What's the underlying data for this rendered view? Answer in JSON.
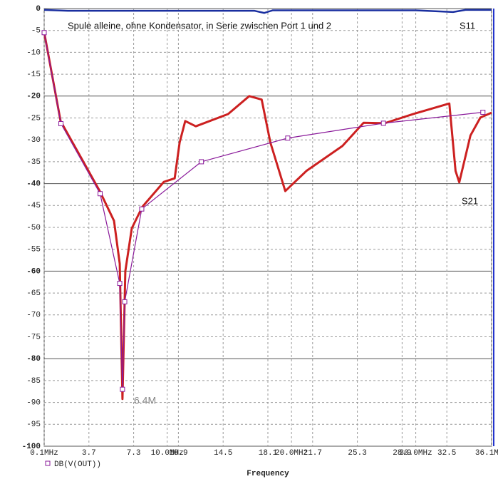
{
  "chart_data": {
    "type": "line",
    "title": "Spule alleine, ohne Kondensator, in Serie zwischen Port 1 und 2",
    "x_label": "Frequency",
    "annotations": [
      "S11",
      "S21",
      "6.4M"
    ],
    "xlim": [
      0.1,
      36.1
    ],
    "ylim": [
      -100,
      0
    ],
    "grid": true,
    "xticks": [
      {
        "value": 0.1,
        "label": "0.1MHz"
      },
      3.7,
      7.3,
      {
        "value": 10,
        "label": "10.0MHz"
      },
      10.9,
      14.5,
      18.1,
      {
        "value": 20,
        "label": "20.0MHz"
      },
      21.7,
      25.3,
      28.9,
      {
        "value": 30,
        "label": "30.0MHz"
      },
      32.5,
      {
        "value": 36.1,
        "label": "36.1MHz"
      }
    ],
    "yticks": [
      0,
      -5,
      -10,
      -15,
      -20,
      -25,
      -30,
      -35,
      -40,
      -45,
      -50,
      -55,
      -60,
      -65,
      -70,
      -75,
      -80,
      -85,
      -90,
      -95,
      -100
    ],
    "series": [
      {
        "name": "S11",
        "color": "#1a2fa0",
        "width": 2.5,
        "markers": false,
        "x": [
          0.1,
          2,
          10,
          17,
          17.8,
          18.5,
          30,
          33,
          34,
          36.1
        ],
        "values": [
          -0.3,
          -0.5,
          -0.5,
          -0.5,
          -1,
          -0.4,
          -0.4,
          -0.8,
          -0.3,
          -0.3
        ]
      },
      {
        "name": "S21",
        "color": "#cc2020",
        "width": 3,
        "markers": false,
        "x": [
          0.1,
          1.42,
          4.57,
          5.72,
          6.18,
          6.4,
          6.63,
          7.15,
          8.0,
          9.73,
          10.6,
          11.0,
          11.45,
          12.3,
          14.9,
          16.6,
          17.6,
          18.3,
          19.5,
          21.2,
          24.1,
          25.8,
          27.5,
          29.8,
          32.7,
          33.2,
          33.5,
          34.4,
          35.2,
          36.1
        ],
        "values": [
          -5.4,
          -25.7,
          -41.7,
          -48.5,
          -58.3,
          -89.2,
          -60,
          -50.2,
          -45.3,
          -39.6,
          -38.8,
          -30.6,
          -25.7,
          -26.9,
          -24.1,
          -20,
          -20.8,
          -30.6,
          -41.7,
          -37.1,
          -31.4,
          -26.1,
          -26.2,
          -24.1,
          -21.7,
          -37.1,
          -39.7,
          -29,
          -24.9,
          -23.8
        ]
      },
      {
        "name": "DB(V(OUT))",
        "color": "#8a1a9a",
        "width": 1.2,
        "markers": true,
        "x": [
          0.1,
          1.45,
          4.6,
          6.18,
          6.4,
          6.58,
          7.95,
          12.75,
          19.7,
          27.4,
          35.4
        ],
        "values": [
          -5.5,
          -26.3,
          -42.3,
          -62.8,
          -87,
          -67,
          -45.8,
          -35,
          -29.6,
          -26.2,
          -23.7
        ]
      }
    ]
  }
}
